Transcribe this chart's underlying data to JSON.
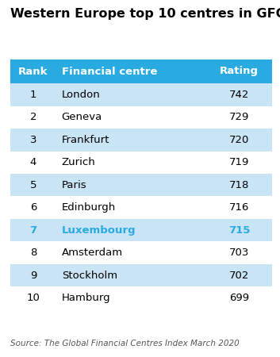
{
  "title": "Western Europe top 10 centres in GFCI",
  "source": "Source: The Global Financial Centres Index March 2020",
  "header": [
    "Rank",
    "Financial centre",
    "Rating"
  ],
  "rows": [
    [
      1,
      "London",
      742,
      false
    ],
    [
      2,
      "Geneva",
      729,
      false
    ],
    [
      3,
      "Frankfurt",
      720,
      false
    ],
    [
      4,
      "Zurich",
      719,
      false
    ],
    [
      5,
      "Paris",
      718,
      false
    ],
    [
      6,
      "Edinburgh",
      716,
      false
    ],
    [
      7,
      "Luxembourg",
      715,
      true
    ],
    [
      8,
      "Amsterdam",
      703,
      false
    ],
    [
      9,
      "Stockholm",
      702,
      false
    ],
    [
      10,
      "Hamburg",
      699,
      false
    ]
  ],
  "header_bg": "#29ABE2",
  "header_text_color": "#FFFFFF",
  "row_bg_even": "#C9E4F5",
  "row_bg_odd": "#FFFFFF",
  "highlight_text_color": "#29ABE2",
  "default_text_color": "#000000",
  "title_color": "#000000",
  "source_color": "#555555",
  "background_color": "#FFFFFF",
  "title_fontsize": 11.5,
  "header_fontsize": 9.5,
  "cell_fontsize": 9.5,
  "source_fontsize": 7.5
}
